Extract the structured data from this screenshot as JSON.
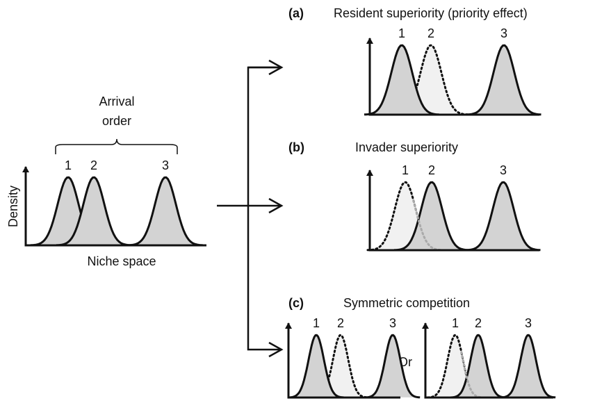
{
  "left": {
    "arrival_label": [
      "Arrival",
      "order"
    ],
    "peaks": [
      "1",
      "2",
      "3"
    ],
    "y_label": "Density",
    "x_label": "Niche space"
  },
  "panels": [
    {
      "tag": "(a)",
      "title": "Resident superiority (priority effect)",
      "plots": [
        {
          "peaks": [
            "1",
            "2",
            "3"
          ]
        }
      ]
    },
    {
      "tag": "(b)",
      "title": "Invader superiority",
      "plots": [
        {
          "peaks": [
            "1",
            "2",
            "3"
          ]
        }
      ]
    },
    {
      "tag": "(c)",
      "title": "Symmetric competition",
      "plots": [
        {
          "peaks": [
            "1",
            "2",
            "3"
          ]
        },
        {
          "peaks": [
            "1",
            "2",
            "3"
          ]
        }
      ],
      "separator": "Or"
    }
  ]
}
